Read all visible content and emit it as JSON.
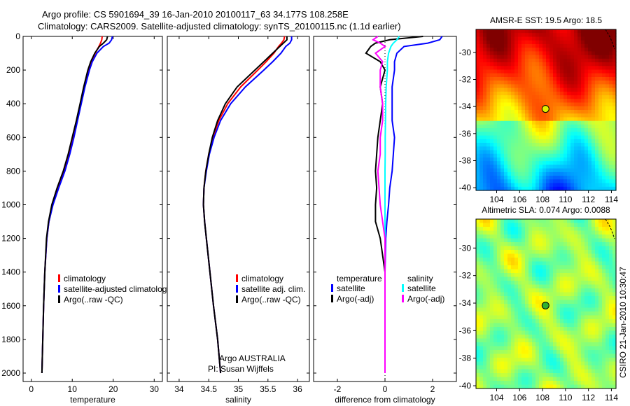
{
  "title_line1": "Argo profile: CS 5901694_39 16-Jan-2010 20100117_63 34.177S 108.258E",
  "title_line2": "Climatology: CARS2009. Satellite-adjusted climatology: synTS_20100115.nc (1.1d earlier)",
  "credit": "CSIRO 21-Jan-2010 10:30:47",
  "colors": {
    "climatology": "#ff0000",
    "satellite": "#0000ff",
    "argo": "#000000",
    "sal_satellite": "#00ffff",
    "sal_argo": "#ff00ff"
  },
  "chart_data": [
    {
      "type": "line",
      "name": "temperature-panel",
      "xlabel": "temperature",
      "ylabel": "",
      "xlim": [
        -2,
        32
      ],
      "ylim": [
        2050,
        0
      ],
      "xticks": [
        "0",
        "10",
        "20",
        "30"
      ],
      "xtick_values": [
        0,
        10,
        20,
        30
      ],
      "yticks": [
        "0",
        "200",
        "400",
        "600",
        "800",
        "1000",
        "1200",
        "1400",
        "1600",
        "1800",
        "2000"
      ],
      "ytick_values": [
        0,
        200,
        400,
        600,
        800,
        1000,
        1200,
        1400,
        1600,
        1800,
        2000
      ],
      "depth": [
        0,
        20,
        40,
        60,
        100,
        150,
        200,
        300,
        400,
        500,
        600,
        700,
        800,
        900,
        1000,
        1100,
        1200,
        1400,
        1600,
        1800,
        2000
      ],
      "series": [
        {
          "name": "climatology",
          "color": "#ff0000",
          "values": [
            17.3,
            17.2,
            16.9,
            16.5,
            15.6,
            14.6,
            13.9,
            12.9,
            12.0,
            11.1,
            10.2,
            9.2,
            8.1,
            6.6,
            5.2,
            4.3,
            3.8,
            3.3,
            3.0,
            2.8,
            2.6
          ]
        },
        {
          "name": "satellite-adjusted climatology",
          "color": "#0000ff",
          "values": [
            19.8,
            19.6,
            19.0,
            17.6,
            16.0,
            14.9,
            14.2,
            13.1,
            12.2,
            11.3,
            10.4,
            9.4,
            8.2,
            6.7,
            5.3,
            4.3,
            3.8,
            3.3,
            3.0,
            2.8,
            2.6
          ]
        },
        {
          "name": "Argo(..raw -QC)",
          "color": "#000000",
          "values": [
            18.6,
            18.4,
            17.6,
            16.6,
            15.5,
            14.5,
            13.8,
            12.8,
            11.9,
            11.0,
            10.0,
            9.0,
            7.8,
            6.3,
            5.0,
            4.2,
            3.7,
            3.3,
            3.0,
            2.8,
            2.6
          ]
        }
      ],
      "legend": [
        "climatology",
        "satellite-adjusted climatolog",
        "Argo(..raw -QC)"
      ],
      "legend_placement": "center-right"
    },
    {
      "type": "line",
      "name": "salinity-panel",
      "xlabel": "salinity",
      "xlim": [
        33.8,
        36.2
      ],
      "ylim": [
        2050,
        0
      ],
      "xticks": [
        "34",
        "34.5",
        "35",
        "35.5",
        "36"
      ],
      "xtick_values": [
        34,
        34.5,
        35,
        35.5,
        36
      ],
      "depth": [
        0,
        20,
        40,
        60,
        100,
        150,
        200,
        300,
        400,
        500,
        600,
        700,
        800,
        900,
        1000,
        1100,
        1200,
        1400,
        1600,
        1800,
        2000
      ],
      "series": [
        {
          "name": "climatology",
          "color": "#ff0000",
          "values": [
            35.78,
            35.77,
            35.73,
            35.68,
            35.6,
            35.47,
            35.33,
            35.04,
            34.82,
            34.67,
            34.57,
            34.5,
            34.45,
            34.42,
            34.41,
            34.43,
            34.46,
            34.52,
            34.58,
            34.65,
            34.7
          ]
        },
        {
          "name": "satellite adj. clim.",
          "color": "#0000ff",
          "values": [
            35.9,
            35.9,
            35.87,
            35.8,
            35.72,
            35.58,
            35.43,
            35.12,
            34.87,
            34.7,
            34.59,
            34.51,
            34.46,
            34.42,
            34.41,
            34.43,
            34.46,
            34.52,
            34.58,
            34.65,
            34.7
          ]
        },
        {
          "name": "Argo(..raw -QC)",
          "color": "#000000",
          "values": [
            35.82,
            35.82,
            35.76,
            35.7,
            35.58,
            35.43,
            35.28,
            34.98,
            34.78,
            34.65,
            34.56,
            34.5,
            34.45,
            34.42,
            34.41,
            34.43,
            34.46,
            34.52,
            34.58,
            34.65,
            34.7
          ]
        }
      ],
      "legend": [
        "climatology",
        "satellite adj. clim.",
        "Argo(..raw -QC)"
      ],
      "annotation": [
        "Argo AUSTRALIA",
        "PI: Susan Wijffels"
      ]
    },
    {
      "type": "line",
      "name": "difference-panel",
      "xlabel": "difference from climatology",
      "xlim": [
        -3,
        3
      ],
      "ylim": [
        2050,
        0
      ],
      "xticks": [
        "-2",
        "0",
        "2"
      ],
      "xtick_values": [
        -2,
        0,
        2
      ],
      "depth": [
        0,
        20,
        40,
        60,
        100,
        150,
        200,
        300,
        400,
        500,
        600,
        700,
        800,
        900,
        1000,
        1100,
        1200,
        1400,
        1600,
        1800,
        2000
      ],
      "series": [
        {
          "name": "temperature satellite",
          "color": "#0000ff",
          "values": [
            2.4,
            2.3,
            1.8,
            0.8,
            0.5,
            0.4,
            0.4,
            0.3,
            0.3,
            0.3,
            0.4,
            0.35,
            0.3,
            0.2,
            0.15,
            0.08,
            0.03,
            0,
            0,
            0,
            0
          ]
        },
        {
          "name": "temperature Argo(-adj)",
          "color": "#000000",
          "values": [
            1.6,
            0.2,
            -0.4,
            -0.6,
            -0.8,
            -0.2,
            0,
            -0.2,
            -0.1,
            -0.2,
            -0.3,
            -0.35,
            -0.4,
            -0.35,
            -0.4,
            -0.4,
            -0.2,
            0,
            0,
            0,
            0
          ]
        },
        {
          "name": "salinity satellite",
          "color": "#00ffff",
          "values": [
            0.6,
            0.5,
            0.35,
            0.25,
            0.15,
            0.1,
            0.1,
            0.05,
            0.03,
            0.02,
            0.01,
            0.01,
            0,
            0,
            0,
            0,
            0,
            0,
            0,
            0,
            0
          ]
        },
        {
          "name": "salinity Argo(-adj)",
          "color": "#ff00ff",
          "values": [
            -0.3,
            -0.5,
            -0.2,
            0,
            -0.4,
            -0.1,
            -0.2,
            -0.2,
            -0.1,
            -0.1,
            -0.2,
            -0.2,
            -0.3,
            -0.25,
            -0.2,
            -0.1,
            0,
            0,
            0,
            0,
            0
          ]
        }
      ],
      "legend_temperature_header": "temperature",
      "legend_salinity_header": "salinity",
      "legend": [
        "satellite",
        "Argo(-adj)",
        "satellite",
        "Argo(-adj)"
      ]
    },
    {
      "type": "heatmap",
      "name": "sst-map",
      "title": "AMSR-E SST: 19.5 Argo: 18.5",
      "xlim": [
        102.2,
        114.4
      ],
      "ylim": [
        -40.2,
        -28.3
      ],
      "xticks": [
        "104",
        "106",
        "108",
        "110",
        "112",
        "114"
      ],
      "xtick_values": [
        104,
        106,
        108,
        110,
        112,
        114
      ],
      "yticks": [
        "-30",
        "-32",
        "-34",
        "-36",
        "-38",
        "-40"
      ],
      "ytick_values": [
        -30,
        -32,
        -34,
        -36,
        -38,
        -40
      ],
      "marker": {
        "lon": 108.258,
        "lat": -34.177,
        "color": "#e0f000"
      }
    },
    {
      "type": "heatmap",
      "name": "sla-map",
      "title": "Altimetric SLA: 0.074 Argo: 0.0088",
      "xlim": [
        102.2,
        114.4
      ],
      "ylim": [
        -40.2,
        -27.9
      ],
      "xticks": [
        "104",
        "106",
        "108",
        "110",
        "112",
        "114"
      ],
      "xtick_values": [
        104,
        106,
        108,
        110,
        112,
        114
      ],
      "yticks": [
        "-30",
        "-32",
        "-34",
        "-36",
        "-38",
        "-40"
      ],
      "ytick_values": [
        -30,
        -32,
        -34,
        -36,
        -38,
        -40
      ],
      "marker": {
        "lon": 108.258,
        "lat": -34.177,
        "color": "#30b030"
      }
    }
  ]
}
